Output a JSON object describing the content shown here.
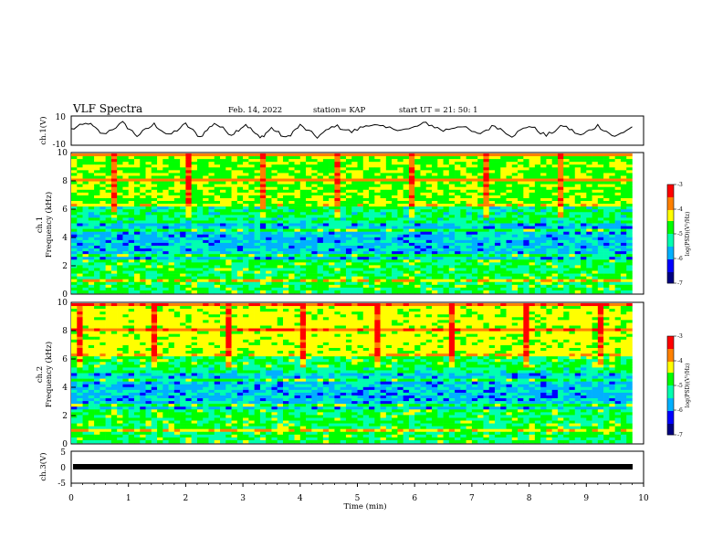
{
  "header": {
    "title": "VLF Spectra",
    "date": "Feb. 14, 2022",
    "station": "station= KAP",
    "start": "start  UT =   21: 50: 1"
  },
  "chart_data": [
    {
      "type": "line",
      "panel": "ch1-waveform",
      "ylabel": "ch.1(V)",
      "ylim": [
        -10,
        10
      ],
      "ytick_labels": [
        "10",
        "-10"
      ],
      "xlim": [
        0,
        10
      ],
      "series": [
        {
          "x": [
            0,
            0.3,
            0.55,
            0.9,
            1.15,
            1.45,
            1.7,
            2.0,
            2.25,
            2.5,
            2.8,
            3.05,
            3.3,
            3.5,
            3.75,
            4.0,
            4.3,
            4.6,
            4.9,
            5.2,
            5.5,
            5.9,
            6.2,
            6.5,
            6.8,
            7.1,
            7.4,
            7.7,
            8.0,
            8.3,
            8.6,
            8.9,
            9.2,
            9.5,
            9.8
          ],
          "y": [
            1,
            6,
            -3,
            6,
            -4,
            5,
            -4,
            5,
            -5,
            6,
            -3,
            5,
            -6,
            2,
            -6,
            4,
            -5,
            4,
            -1,
            5,
            2,
            1,
            6,
            0,
            4,
            -3,
            4,
            -4,
            4,
            -4,
            4,
            -4,
            4,
            -5,
            3
          ]
        }
      ]
    },
    {
      "type": "heatmap",
      "panel": "ch1-spectrogram",
      "ylabel": "ch.1\nFrequency (kHz)",
      "ylim": [
        0,
        10
      ],
      "xlim": [
        0,
        9.8
      ],
      "ytick_labels": [
        "0",
        "2",
        "4",
        "6",
        "8",
        "10"
      ],
      "colorbar": {
        "label": "log(PSD)(V²/Hz)",
        "range": [
          -7,
          -3
        ],
        "ticks": [
          "-3",
          "-4",
          "-5",
          "-6",
          "-7"
        ]
      }
    },
    {
      "type": "heatmap",
      "panel": "ch2-spectrogram",
      "ylabel": "ch.2\nFrequency (kHz)",
      "ylim": [
        0,
        10
      ],
      "xlim": [
        0,
        9.8
      ],
      "ytick_labels": [
        "0",
        "2",
        "4",
        "6",
        "8",
        "10"
      ],
      "colorbar": {
        "label": "log(PSD)(V²/Hz)",
        "range": [
          -7,
          -3
        ],
        "ticks": [
          "-3",
          "-4",
          "-5",
          "-6",
          "-7"
        ]
      }
    },
    {
      "type": "line",
      "panel": "ch3-signal",
      "ylabel": "ch.3(V)",
      "ylim": [
        -5,
        5
      ],
      "ytick_labels": [
        "5",
        "0",
        "-5"
      ],
      "xlim": [
        0,
        10
      ],
      "series": [
        {
          "x": [
            0,
            9.8
          ],
          "y": [
            0,
            0
          ]
        }
      ]
    }
  ],
  "xaxis": {
    "label": "Time  (min)",
    "ticks": [
      "0",
      "1",
      "2",
      "3",
      "4",
      "5",
      "6",
      "7",
      "8",
      "9",
      "10"
    ]
  },
  "colormap": [
    "#000080",
    "#0000ff",
    "#00b0ff",
    "#00ffb0",
    "#00ff00",
    "#ffff00",
    "#ff8000",
    "#ff0000",
    "#ffffff"
  ]
}
